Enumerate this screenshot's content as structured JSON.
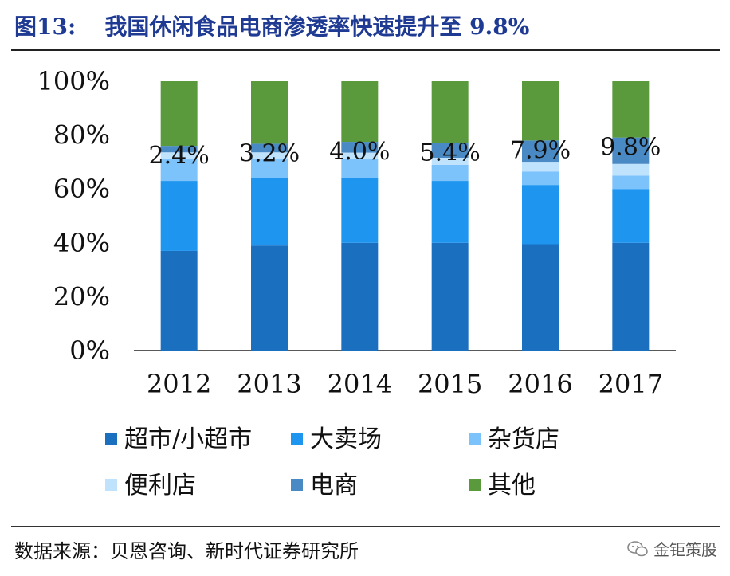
{
  "figure": {
    "number": "图13:",
    "title": "我国休闲食品电商渗透率快速提升至 9.8%",
    "source": "数据来源：贝恩咨询、新时代证券研究所",
    "watermark": "金钜策股"
  },
  "chart_data": {
    "type": "bar",
    "stacked": true,
    "categories": [
      "2012",
      "2013",
      "2014",
      "2015",
      "2016",
      "2017"
    ],
    "ylim": [
      0,
      100
    ],
    "yticks": [
      "0%",
      "20%",
      "40%",
      "60%",
      "80%",
      "100%"
    ],
    "grid": false,
    "legend_position": "bottom",
    "series": [
      {
        "name": "超市/小超市",
        "color": "#1a6fbf",
        "values": [
          37,
          39,
          40,
          40,
          39.5,
          40
        ]
      },
      {
        "name": "大卖场",
        "color": "#1e96f0",
        "values": [
          26,
          25,
          24,
          23,
          22,
          20
        ]
      },
      {
        "name": "杂货店",
        "color": "#7cc2fb",
        "values": [
          8,
          7,
          7,
          6,
          5,
          5
        ]
      },
      {
        "name": "便利店",
        "color": "#bfe2fd",
        "values": [
          2.6,
          2.6,
          2.5,
          2.6,
          3.6,
          4.3
        ]
      },
      {
        "name": "电商",
        "color": "#4a8ac4",
        "values": [
          2.4,
          3.2,
          4.0,
          5.4,
          7.9,
          9.8
        ]
      },
      {
        "name": "其他",
        "color": "#5a9a3c",
        "values": [
          24,
          23.2,
          22.5,
          23,
          22,
          20.9
        ]
      }
    ],
    "data_labels": [
      "2.4%",
      "3.2%",
      "4.0%",
      "5.4%",
      "7.9%",
      "9.8%"
    ],
    "data_label_series": "电商"
  }
}
